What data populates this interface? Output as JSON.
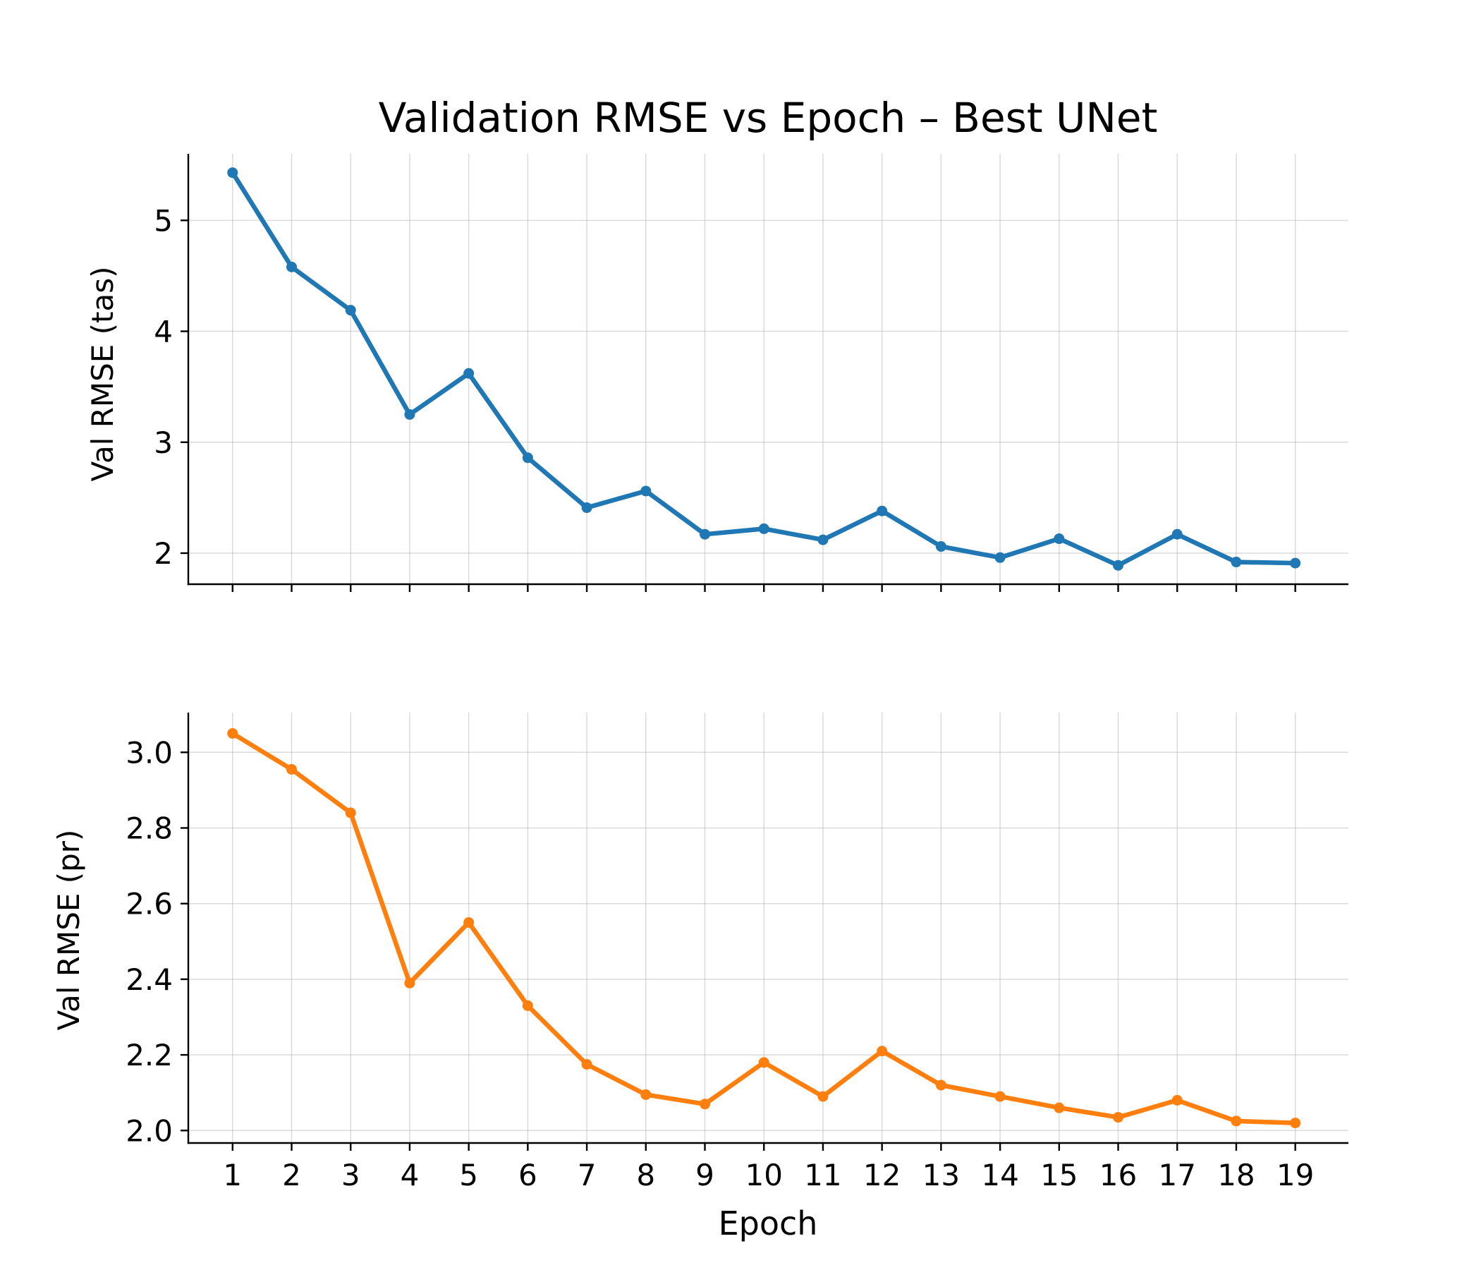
{
  "chart_data": [
    {
      "type": "line",
      "title": "Validation RMSE vs Epoch – Best UNet",
      "xlabel": "",
      "ylabel": "Val RMSE (tas)",
      "x": [
        1,
        2,
        3,
        4,
        5,
        6,
        7,
        8,
        9,
        10,
        11,
        12,
        13,
        14,
        15,
        16,
        17,
        18,
        19
      ],
      "xticks": [
        "1",
        "2",
        "3",
        "4",
        "5",
        "6",
        "7",
        "8",
        "9",
        "10",
        "11",
        "12",
        "13",
        "14",
        "15",
        "16",
        "17",
        "18",
        "19"
      ],
      "show_xtick_labels": false,
      "yticks": [
        "2",
        "3",
        "4",
        "5"
      ],
      "ytick_values": [
        2,
        3,
        4,
        5
      ],
      "ylim": [
        1.72,
        5.6
      ],
      "xlim": [
        0.25,
        19.9
      ],
      "grid": true,
      "series": [
        {
          "color": "#1f77b4",
          "values": [
            5.43,
            4.58,
            4.19,
            3.25,
            3.62,
            2.86,
            2.41,
            2.56,
            2.17,
            2.22,
            2.12,
            2.38,
            2.06,
            1.96,
            2.13,
            1.89,
            2.17,
            1.92,
            1.91
          ]
        }
      ]
    },
    {
      "type": "line",
      "title": "",
      "xlabel": "Epoch",
      "ylabel": "Val RMSE (pr)",
      "x": [
        1,
        2,
        3,
        4,
        5,
        6,
        7,
        8,
        9,
        10,
        11,
        12,
        13,
        14,
        15,
        16,
        17,
        18,
        19
      ],
      "xticks": [
        "1",
        "2",
        "3",
        "4",
        "5",
        "6",
        "7",
        "8",
        "9",
        "10",
        "11",
        "12",
        "13",
        "14",
        "15",
        "16",
        "17",
        "18",
        "19"
      ],
      "show_xtick_labels": true,
      "yticks": [
        "2.0",
        "2.2",
        "2.4",
        "2.6",
        "2.8",
        "3.0"
      ],
      "ytick_values": [
        2.0,
        2.2,
        2.4,
        2.6,
        2.8,
        3.0
      ],
      "ylim": [
        1.967,
        3.105
      ],
      "xlim": [
        0.25,
        19.9
      ],
      "grid": true,
      "series": [
        {
          "color": "#ff7f0e",
          "values": [
            3.05,
            2.955,
            2.84,
            2.39,
            2.55,
            2.33,
            2.175,
            2.095,
            2.07,
            2.18,
            2.09,
            2.21,
            2.12,
            2.09,
            2.06,
            2.035,
            2.08,
            2.025,
            2.02
          ]
        }
      ]
    }
  ]
}
